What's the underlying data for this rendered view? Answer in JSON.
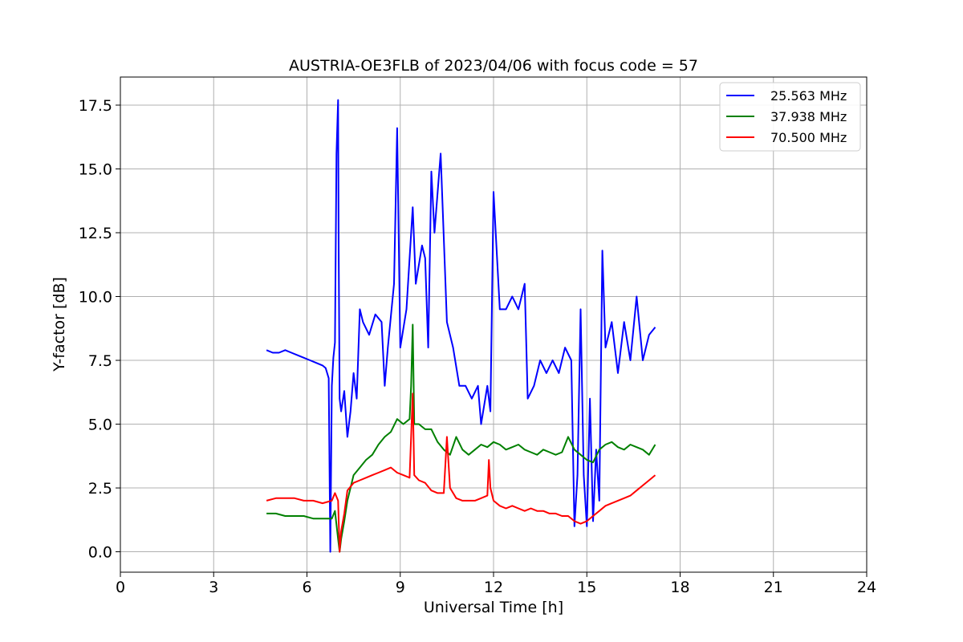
{
  "chart_data": {
    "type": "line",
    "title": "AUSTRIA-OE3FLB of 2023/04/06 with focus code = 57",
    "xlabel": "Universal Time [h]",
    "ylabel": "Y-factor [dB]",
    "xlim": [
      0,
      24
    ],
    "ylim": [
      -0.8,
      18.6
    ],
    "xticks": [
      0,
      3,
      6,
      9,
      12,
      15,
      18,
      21,
      24
    ],
    "yticks": [
      0.0,
      2.5,
      5.0,
      7.5,
      10.0,
      12.5,
      15.0,
      17.5
    ],
    "xtick_labels": [
      "0",
      "3",
      "6",
      "9",
      "12",
      "15",
      "18",
      "21",
      "24"
    ],
    "ytick_labels": [
      "0.0",
      "2.5",
      "5.0",
      "7.5",
      "10.0",
      "12.5",
      "15.0",
      "17.5"
    ],
    "grid": true,
    "legend": "top-right",
    "series": [
      {
        "name": "25.563 MHz",
        "color": "#0000ff",
        "x": [
          4.7,
          4.9,
          5.1,
          5.3,
          5.5,
          5.7,
          5.9,
          6.1,
          6.3,
          6.5,
          6.6,
          6.7,
          6.75,
          6.8,
          6.85,
          6.9,
          6.95,
          7.0,
          7.02,
          7.05,
          7.1,
          7.2,
          7.3,
          7.4,
          7.5,
          7.6,
          7.7,
          7.8,
          8.0,
          8.2,
          8.4,
          8.5,
          8.6,
          8.8,
          8.9,
          9.0,
          9.2,
          9.4,
          9.5,
          9.7,
          9.8,
          9.9,
          10.0,
          10.1,
          10.3,
          10.5,
          10.7,
          10.9,
          11.1,
          11.3,
          11.5,
          11.6,
          11.8,
          11.9,
          12.0,
          12.2,
          12.4,
          12.6,
          12.8,
          13.0,
          13.1,
          13.3,
          13.5,
          13.7,
          13.9,
          14.1,
          14.3,
          14.5,
          14.6,
          14.7,
          14.8,
          14.9,
          15.0,
          15.1,
          15.2,
          15.3,
          15.4,
          15.5,
          15.6,
          15.7,
          15.8,
          16.0,
          16.2,
          16.4,
          16.6,
          16.8,
          17.0,
          17.2
        ],
        "y": [
          7.9,
          7.8,
          7.8,
          7.9,
          7.8,
          7.7,
          7.6,
          7.5,
          7.4,
          7.3,
          7.2,
          6.8,
          0.0,
          6.5,
          7.6,
          8.2,
          15.6,
          17.7,
          12.0,
          6.0,
          5.5,
          6.3,
          4.5,
          5.5,
          7.0,
          6.0,
          9.5,
          9.0,
          8.5,
          9.3,
          9.0,
          6.5,
          8.0,
          10.5,
          16.6,
          8.0,
          9.5,
          13.5,
          10.5,
          12.0,
          11.5,
          8.0,
          14.9,
          12.5,
          15.6,
          9.0,
          8.0,
          6.5,
          6.5,
          6.0,
          6.5,
          5.0,
          6.5,
          5.5,
          14.1,
          9.5,
          9.5,
          10.0,
          9.5,
          10.5,
          6.0,
          6.5,
          7.5,
          7.0,
          7.5,
          7.0,
          8.0,
          7.5,
          1.0,
          3.0,
          9.5,
          3.0,
          1.0,
          6.0,
          1.2,
          4.0,
          2.0,
          11.8,
          8.0,
          8.5,
          9.0,
          7.0,
          9.0,
          7.5,
          10.0,
          7.5,
          8.5,
          8.8
        ]
      },
      {
        "name": "37.938 MHz",
        "color": "#008000",
        "x": [
          4.7,
          5.0,
          5.3,
          5.6,
          5.9,
          6.2,
          6.5,
          6.8,
          6.9,
          7.0,
          7.05,
          7.1,
          7.2,
          7.3,
          7.5,
          7.7,
          7.9,
          8.1,
          8.3,
          8.5,
          8.7,
          8.9,
          9.1,
          9.3,
          9.35,
          9.4,
          9.45,
          9.6,
          9.8,
          10.0,
          10.2,
          10.4,
          10.6,
          10.8,
          11.0,
          11.2,
          11.4,
          11.6,
          11.8,
          12.0,
          12.2,
          12.4,
          12.6,
          12.8,
          13.0,
          13.2,
          13.4,
          13.6,
          13.8,
          14.0,
          14.2,
          14.4,
          14.6,
          14.8,
          15.0,
          15.2,
          15.4,
          15.6,
          15.8,
          16.0,
          16.2,
          16.4,
          16.6,
          16.8,
          17.0,
          17.2
        ],
        "y": [
          1.5,
          1.5,
          1.4,
          1.4,
          1.4,
          1.3,
          1.3,
          1.3,
          1.6,
          0.5,
          0.0,
          0.5,
          1.2,
          2.0,
          3.0,
          3.3,
          3.6,
          3.8,
          4.2,
          4.5,
          4.7,
          5.2,
          5.0,
          5.2,
          6.5,
          8.9,
          5.0,
          5.0,
          4.8,
          4.8,
          4.3,
          4.0,
          3.8,
          4.5,
          4.0,
          3.8,
          4.0,
          4.2,
          4.1,
          4.3,
          4.2,
          4.0,
          4.1,
          4.2,
          4.0,
          3.9,
          3.8,
          4.0,
          3.9,
          3.8,
          3.9,
          4.5,
          4.0,
          3.8,
          3.6,
          3.5,
          4.0,
          4.2,
          4.3,
          4.1,
          4.0,
          4.2,
          4.1,
          4.0,
          3.8,
          4.2
        ]
      },
      {
        "name": "70.500 MHz",
        "color": "#ff0000",
        "x": [
          4.7,
          5.0,
          5.3,
          5.6,
          5.9,
          6.2,
          6.5,
          6.8,
          6.9,
          7.0,
          7.05,
          7.1,
          7.2,
          7.3,
          7.5,
          7.7,
          7.9,
          8.1,
          8.3,
          8.5,
          8.7,
          8.9,
          9.1,
          9.3,
          9.4,
          9.45,
          9.6,
          9.8,
          10.0,
          10.2,
          10.4,
          10.5,
          10.6,
          10.8,
          11.0,
          11.2,
          11.4,
          11.6,
          11.8,
          11.85,
          11.9,
          12.0,
          12.2,
          12.4,
          12.6,
          12.8,
          13.0,
          13.2,
          13.4,
          13.6,
          13.8,
          14.0,
          14.2,
          14.4,
          14.6,
          14.8,
          15.0,
          15.2,
          15.4,
          15.6,
          15.8,
          16.0,
          16.2,
          16.4,
          16.6,
          16.8,
          17.0,
          17.2
        ],
        "y": [
          2.0,
          2.1,
          2.1,
          2.1,
          2.0,
          2.0,
          1.9,
          2.0,
          2.3,
          2.0,
          0.0,
          0.8,
          1.5,
          2.4,
          2.7,
          2.8,
          2.9,
          3.0,
          3.1,
          3.2,
          3.3,
          3.1,
          3.0,
          2.9,
          6.2,
          3.0,
          2.8,
          2.7,
          2.4,
          2.3,
          2.3,
          4.5,
          2.5,
          2.1,
          2.0,
          2.0,
          2.0,
          2.1,
          2.2,
          3.6,
          2.5,
          2.0,
          1.8,
          1.7,
          1.8,
          1.7,
          1.6,
          1.7,
          1.6,
          1.6,
          1.5,
          1.5,
          1.4,
          1.4,
          1.2,
          1.1,
          1.2,
          1.4,
          1.6,
          1.8,
          1.9,
          2.0,
          2.1,
          2.2,
          2.4,
          2.6,
          2.8,
          3.0
        ]
      }
    ]
  }
}
